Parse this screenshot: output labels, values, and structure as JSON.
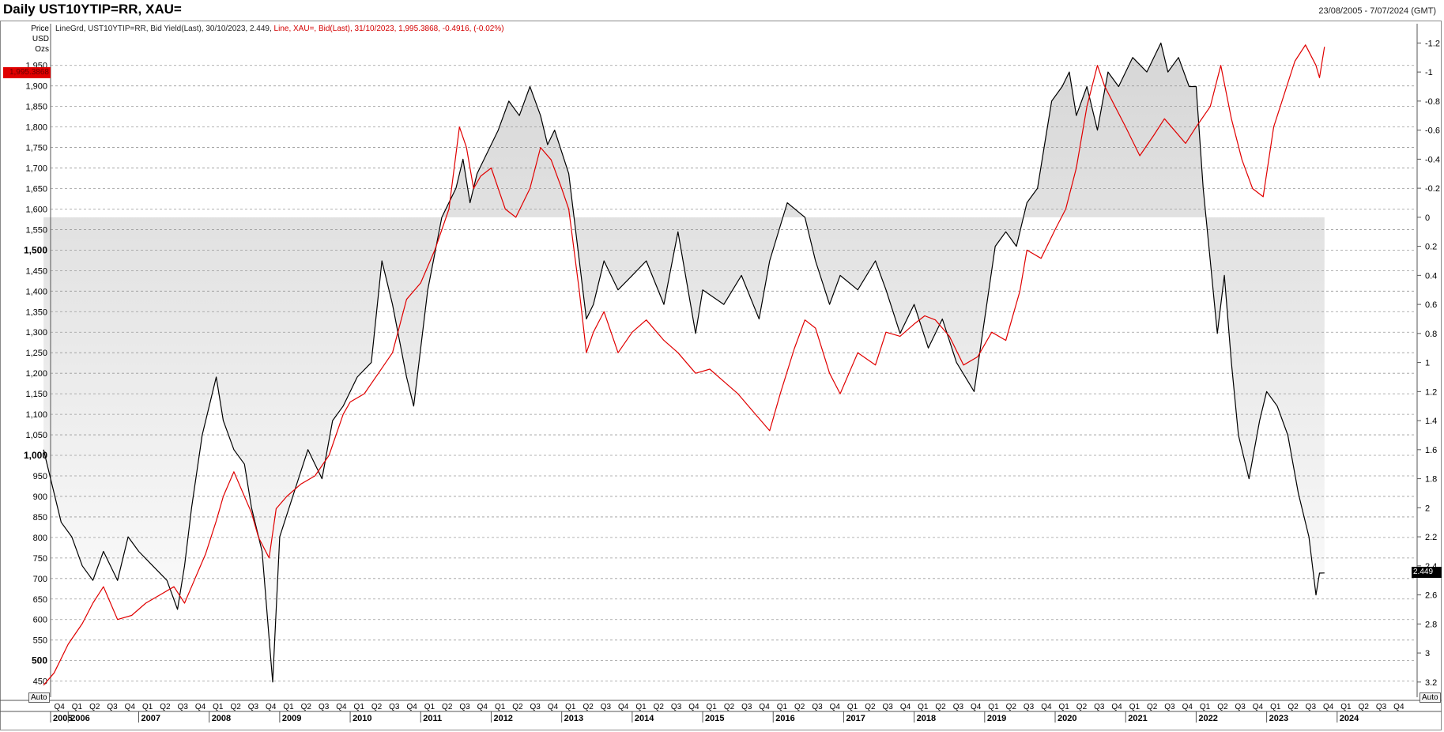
{
  "title": "Daily UST10YTIP=RR, XAU=",
  "date_range": "23/08/2005 - 7/07/2024 (GMT)",
  "price_header": [
    "Price",
    "USD",
    "Ozs"
  ],
  "legend": {
    "black": "LineGrd, UST10YTIP=RR, Bid Yield(Last), 30/10/2023, 2.449,",
    "red": "Line, XAU=, Bid(Last), 31/10/2023, 1,995.3868, -0.4916, (-0.02%)"
  },
  "badges": {
    "left_value": "1,995.3868",
    "right_value": "2.449",
    "auto_left": "Auto",
    "auto_right": "Auto"
  },
  "colors": {
    "gold_line": "#e00000",
    "yield_line": "#000000",
    "shade": "#d6d6d6",
    "grid": "#9a9a9a"
  },
  "chart_data": {
    "type": "line",
    "title": "Daily UST10YTIP=RR, XAU=",
    "left_axis": {
      "label": "Price USD Ozs",
      "range": [
        430,
        2040
      ],
      "ticks": [
        450,
        500,
        550,
        600,
        650,
        700,
        750,
        800,
        850,
        900,
        950,
        1000,
        1050,
        1100,
        1150,
        1200,
        1250,
        1300,
        1350,
        1400,
        1450,
        1500,
        1550,
        1600,
        1650,
        1700,
        1750,
        1800,
        1850,
        1900,
        1950
      ],
      "tick_labels": [
        "450",
        "500",
        "550",
        "600",
        "650",
        "700",
        "750",
        "800",
        "850",
        "900",
        "950",
        "1,000",
        "1,050",
        "1,100",
        "1,150",
        "1,200",
        "1,250",
        "1,300",
        "1,350",
        "1,400",
        "1,450",
        "1,500",
        "1,550",
        "1,600",
        "1,650",
        "1,700",
        "1,750",
        "1,800",
        "1,850",
        "1,900",
        "1,950"
      ],
      "bold_ticks": [
        500,
        1000,
        1500
      ]
    },
    "right_axis": {
      "inverted": true,
      "range": [
        -1.3,
        3.25
      ],
      "ticks": [
        -1.2,
        -1,
        -0.8,
        -0.6,
        -0.4,
        -0.2,
        0,
        0.2,
        0.4,
        0.6,
        0.8,
        1,
        1.2,
        1.4,
        1.6,
        1.8,
        2,
        2.2,
        2.4,
        2.6,
        2.8,
        3,
        3.2
      ],
      "tick_labels": [
        "-1.2",
        "-1",
        "-0.8",
        "-0.6",
        "-0.4",
        "-0.2",
        "0",
        "0.2",
        "0.4",
        "0.6",
        "0.8",
        "1",
        "1.2",
        "1.4",
        "1.6",
        "1.8",
        "2",
        "2.2",
        "2.4",
        "2.6",
        "2.8",
        "3",
        "3.2"
      ]
    },
    "x_axis": {
      "quarters": [
        "Q4",
        "Q1",
        "Q2",
        "Q3",
        "Q4",
        "Q1",
        "Q2",
        "Q3",
        "Q4",
        "Q1",
        "Q2",
        "Q3",
        "Q4",
        "Q1",
        "Q2",
        "Q3",
        "Q4",
        "Q1",
        "Q2",
        "Q3",
        "Q4",
        "Q1",
        "Q2",
        "Q3",
        "Q4",
        "Q1",
        "Q2",
        "Q3",
        "Q4",
        "Q1",
        "Q2",
        "Q3",
        "Q4",
        "Q1",
        "Q2",
        "Q3",
        "Q4",
        "Q1",
        "Q2",
        "Q3",
        "Q4",
        "Q1",
        "Q2",
        "Q3",
        "Q4",
        "Q1",
        "Q2",
        "Q3",
        "Q4",
        "Q1",
        "Q2",
        "Q3",
        "Q4",
        "Q1",
        "Q2",
        "Q3",
        "Q4",
        "Q1",
        "Q2",
        "Q3",
        "Q4",
        "Q1",
        "Q2",
        "Q3",
        "Q4",
        "Q1",
        "Q2",
        "Q3",
        "Q4",
        "Q1",
        "Q2",
        "Q3",
        "Q4",
        "Q1",
        "Q2",
        "Q3",
        "Q4"
      ],
      "years": [
        "2005",
        "2006",
        "2007",
        "2008",
        "2009",
        "2010",
        "2011",
        "2012",
        "2013",
        "2014",
        "2015",
        "2016",
        "2017",
        "2018",
        "2019",
        "2020",
        "2021",
        "2022",
        "2023",
        "2024"
      ],
      "start_year": 2005.75
    },
    "series": [
      {
        "name": "UST10YTIP=RR",
        "axis": "right",
        "color": "#000000",
        "fill_to": 0,
        "x": [
          2005.65,
          2005.75,
          2005.9,
          2006.05,
          2006.2,
          2006.35,
          2006.5,
          2006.7,
          2006.85,
          2007.0,
          2007.2,
          2007.4,
          2007.55,
          2007.65,
          2007.75,
          2007.9,
          2008.1,
          2008.2,
          2008.35,
          2008.5,
          2008.6,
          2008.75,
          2008.85,
          2008.9,
          2009.0,
          2009.2,
          2009.4,
          2009.6,
          2009.75,
          2009.9,
          2010.1,
          2010.3,
          2010.45,
          2010.6,
          2010.8,
          2010.9,
          2011.1,
          2011.3,
          2011.5,
          2011.6,
          2011.7,
          2011.8,
          2011.9,
          2012.1,
          2012.25,
          2012.4,
          2012.55,
          2012.7,
          2012.8,
          2012.9,
          2013.1,
          2013.2,
          2013.35,
          2013.45,
          2013.6,
          2013.8,
          2014.0,
          2014.2,
          2014.45,
          2014.65,
          2014.9,
          2015.0,
          2015.3,
          2015.55,
          2015.8,
          2015.95,
          2016.2,
          2016.45,
          2016.6,
          2016.8,
          2016.95,
          2017.2,
          2017.45,
          2017.6,
          2017.8,
          2018.0,
          2018.2,
          2018.4,
          2018.6,
          2018.85,
          2019.0,
          2019.15,
          2019.3,
          2019.45,
          2019.6,
          2019.75,
          2019.85,
          2019.95,
          2020.1,
          2020.2,
          2020.3,
          2020.45,
          2020.6,
          2020.75,
          2020.9,
          2021.1,
          2021.3,
          2021.5,
          2021.6,
          2021.75,
          2021.9,
          2022.0,
          2022.1,
          2022.2,
          2022.3,
          2022.4,
          2022.5,
          2022.6,
          2022.75,
          2022.9,
          2023.0,
          2023.15,
          2023.3,
          2023.45,
          2023.6,
          2023.7,
          2023.75,
          2023.82
        ],
        "values": [
          1.6,
          1.8,
          2.1,
          2.2,
          2.4,
          2.5,
          2.3,
          2.5,
          2.2,
          2.3,
          2.4,
          2.5,
          2.7,
          2.4,
          2.0,
          1.5,
          1.1,
          1.4,
          1.6,
          1.7,
          2.0,
          2.3,
          2.9,
          3.2,
          2.2,
          1.9,
          1.6,
          1.8,
          1.4,
          1.3,
          1.1,
          1.0,
          0.3,
          0.6,
          1.1,
          1.3,
          0.5,
          0.0,
          -0.2,
          -0.4,
          -0.1,
          -0.3,
          -0.4,
          -0.6,
          -0.8,
          -0.7,
          -0.9,
          -0.7,
          -0.5,
          -0.6,
          -0.3,
          0.1,
          0.7,
          0.6,
          0.3,
          0.5,
          0.4,
          0.3,
          0.6,
          0.1,
          0.8,
          0.5,
          0.6,
          0.4,
          0.7,
          0.3,
          -0.1,
          0.0,
          0.3,
          0.6,
          0.4,
          0.5,
          0.3,
          0.5,
          0.8,
          0.6,
          0.9,
          0.7,
          1.0,
          1.2,
          0.7,
          0.2,
          0.1,
          0.2,
          -0.1,
          -0.2,
          -0.5,
          -0.8,
          -0.9,
          -1.0,
          -0.7,
          -0.9,
          -0.6,
          -1.0,
          -0.9,
          -1.1,
          -1.0,
          -1.2,
          -1.0,
          -1.1,
          -0.9,
          -0.9,
          -0.2,
          0.3,
          0.8,
          0.4,
          1.0,
          1.5,
          1.8,
          1.4,
          1.2,
          1.3,
          1.5,
          1.9,
          2.2,
          2.6,
          2.45,
          2.449
        ]
      },
      {
        "name": "XAU=",
        "axis": "left",
        "color": "#e00000",
        "x": [
          2005.65,
          2005.8,
          2006.0,
          2006.2,
          2006.35,
          2006.5,
          2006.7,
          2006.9,
          2007.1,
          2007.3,
          2007.5,
          2007.65,
          2007.8,
          2007.95,
          2008.1,
          2008.2,
          2008.35,
          2008.5,
          2008.6,
          2008.7,
          2008.85,
          2008.95,
          2009.1,
          2009.3,
          2009.5,
          2009.7,
          2009.9,
          2010.0,
          2010.2,
          2010.4,
          2010.6,
          2010.8,
          2011.0,
          2011.2,
          2011.4,
          2011.55,
          2011.65,
          2011.75,
          2011.85,
          2012.0,
          2012.2,
          2012.35,
          2012.55,
          2012.7,
          2012.85,
          2013.0,
          2013.1,
          2013.25,
          2013.35,
          2013.45,
          2013.6,
          2013.8,
          2014.0,
          2014.2,
          2014.45,
          2014.65,
          2014.9,
          2015.1,
          2015.3,
          2015.5,
          2015.75,
          2015.95,
          2016.1,
          2016.3,
          2016.45,
          2016.6,
          2016.8,
          2016.95,
          2017.2,
          2017.45,
          2017.6,
          2017.8,
          2018.0,
          2018.15,
          2018.3,
          2018.5,
          2018.7,
          2018.9,
          2019.1,
          2019.3,
          2019.5,
          2019.6,
          2019.8,
          2020.0,
          2020.15,
          2020.3,
          2020.45,
          2020.6,
          2020.7,
          2020.85,
          2021.0,
          2021.2,
          2021.4,
          2021.55,
          2021.7,
          2021.85,
          2022.0,
          2022.2,
          2022.35,
          2022.5,
          2022.65,
          2022.8,
          2022.95,
          2023.1,
          2023.25,
          2023.4,
          2023.55,
          2023.7,
          2023.75,
          2023.82
        ],
        "values": [
          440,
          470,
          540,
          590,
          640,
          680,
          600,
          610,
          640,
          660,
          680,
          640,
          700,
          760,
          840,
          900,
          960,
          900,
          860,
          800,
          750,
          870,
          900,
          930,
          950,
          1000,
          1100,
          1130,
          1150,
          1200,
          1250,
          1380,
          1420,
          1500,
          1600,
          1800,
          1750,
          1650,
          1680,
          1700,
          1600,
          1580,
          1650,
          1750,
          1720,
          1650,
          1600,
          1400,
          1250,
          1300,
          1350,
          1250,
          1300,
          1330,
          1280,
          1250,
          1200,
          1210,
          1180,
          1150,
          1100,
          1060,
          1150,
          1260,
          1330,
          1310,
          1200,
          1150,
          1250,
          1220,
          1300,
          1290,
          1320,
          1340,
          1330,
          1290,
          1220,
          1240,
          1300,
          1280,
          1400,
          1500,
          1480,
          1550,
          1600,
          1700,
          1850,
          1950,
          1900,
          1850,
          1800,
          1730,
          1780,
          1820,
          1790,
          1760,
          1800,
          1850,
          1950,
          1820,
          1720,
          1650,
          1630,
          1800,
          1880,
          1960,
          2000,
          1950,
          1920,
          1995.3868
        ]
      }
    ]
  }
}
